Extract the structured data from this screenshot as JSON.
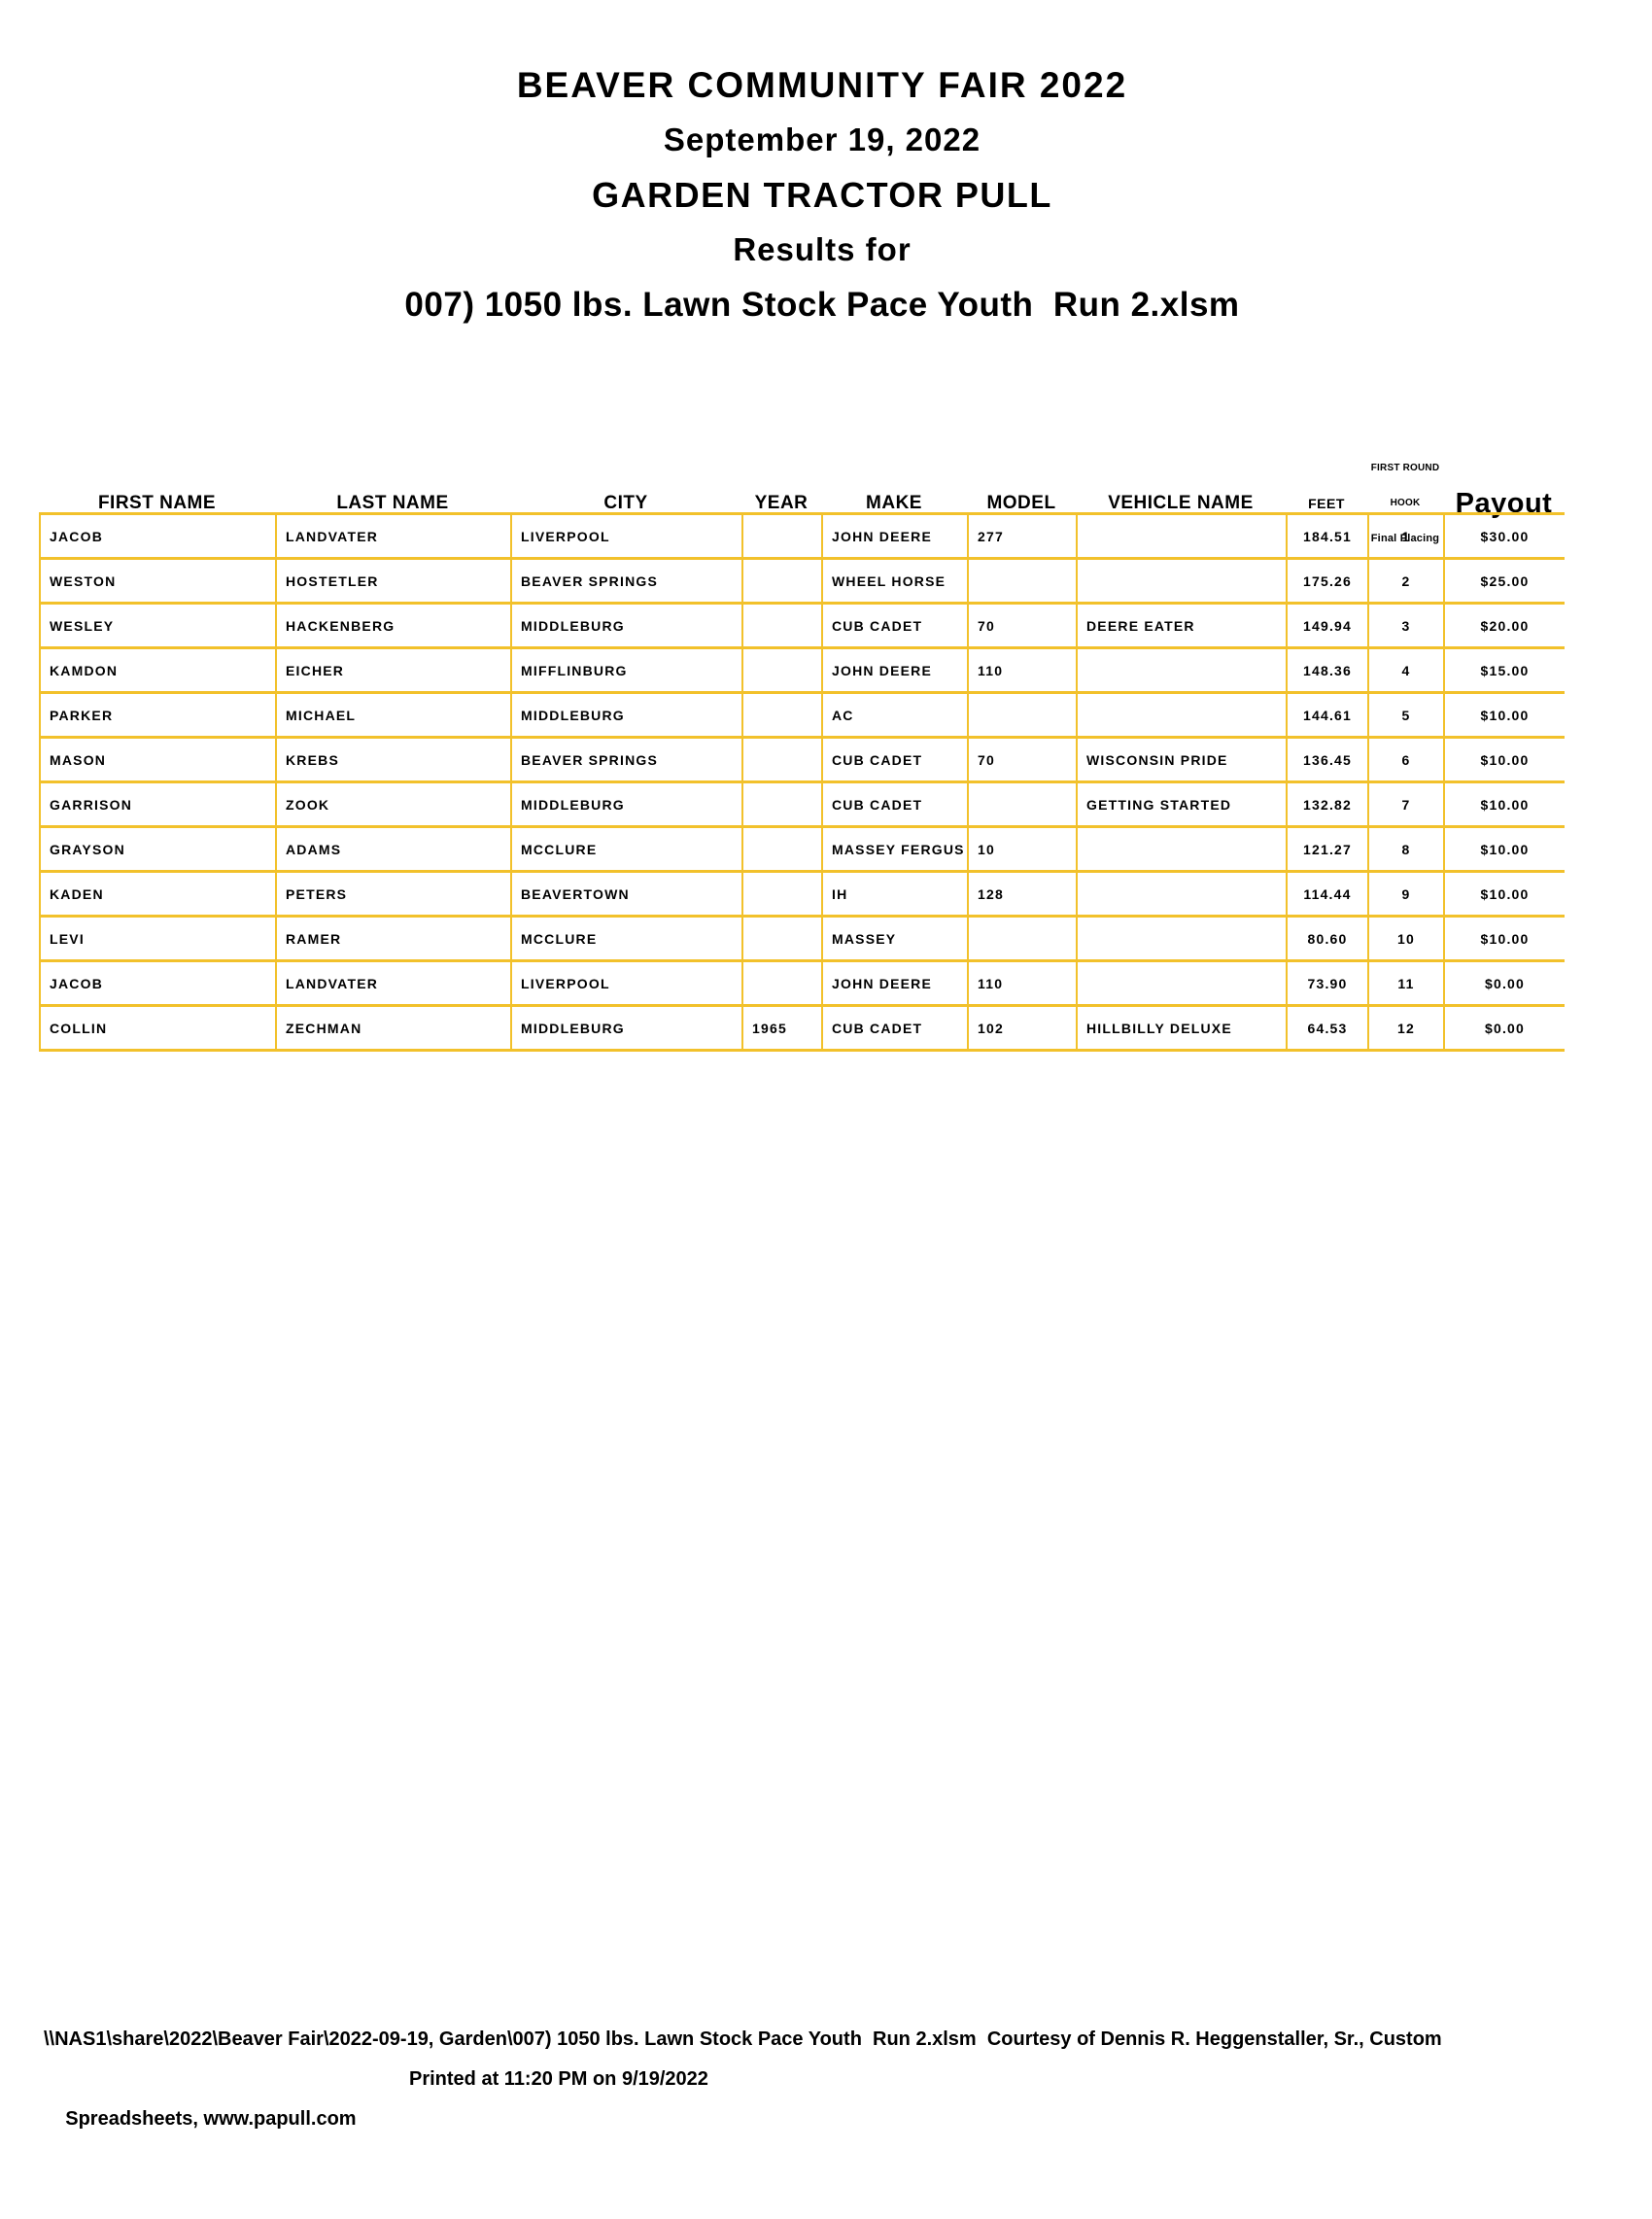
{
  "colors": {
    "table_border": "#F2C12B",
    "text": "#000000",
    "background": "#FFFFFF"
  },
  "page": {
    "titles": [
      "BEAVER COMMUNITY FAIR 2022",
      "September 19, 2022",
      "GARDEN TRACTOR PULL",
      "Results for",
      "007) 1050 lbs. Lawn Stock Pace Youth  Run 2.xlsm"
    ]
  },
  "table": {
    "columns": [
      {
        "key": "first_name",
        "label": "FIRST NAME"
      },
      {
        "key": "last_name",
        "label": "LAST NAME"
      },
      {
        "key": "city",
        "label": "CITY"
      },
      {
        "key": "year",
        "label": "YEAR"
      },
      {
        "key": "make",
        "label": "MAKE"
      },
      {
        "key": "model",
        "label": "MODEL"
      },
      {
        "key": "vehicle_name",
        "label": "VEHICLE NAME"
      },
      {
        "key": "feet",
        "label": "FEET"
      },
      {
        "key": "hook",
        "label_lines": [
          "FIRST ROUND",
          "HOOK",
          "Final Placing"
        ]
      },
      {
        "key": "payout",
        "label": "Payout"
      }
    ],
    "rows": [
      [
        "JACOB",
        "LANDVATER",
        "LIVERPOOL",
        "",
        "JOHN DEERE",
        "277",
        "",
        "184.51",
        "1",
        "$30.00"
      ],
      [
        "WESTON",
        "HOSTETLER",
        "BEAVER SPRINGS",
        "",
        "WHEEL HORSE",
        "",
        "",
        "175.26",
        "2",
        "$25.00"
      ],
      [
        "WESLEY",
        "HACKENBERG",
        "MIDDLEBURG",
        "",
        "CUB CADET",
        "70",
        "DEERE EATER",
        "149.94",
        "3",
        "$20.00"
      ],
      [
        "KAMDON",
        "EICHER",
        "MIFFLINBURG",
        "",
        "JOHN DEERE",
        "110",
        "",
        "148.36",
        "4",
        "$15.00"
      ],
      [
        "PARKER",
        "MICHAEL",
        "MIDDLEBURG",
        "",
        "AC",
        "",
        "",
        "144.61",
        "5",
        "$10.00"
      ],
      [
        "MASON",
        "KREBS",
        "BEAVER SPRINGS",
        "",
        "CUB CADET",
        "70",
        "WISCONSIN PRIDE",
        "136.45",
        "6",
        "$10.00"
      ],
      [
        "GARRISON",
        "ZOOK",
        "MIDDLEBURG",
        "",
        "CUB CADET",
        "",
        "GETTING STARTED",
        "132.82",
        "7",
        "$10.00"
      ],
      [
        "GRAYSON",
        "ADAMS",
        "MCCLURE",
        "",
        "MASSEY FERGUS",
        "10",
        "",
        "121.27",
        "8",
        "$10.00"
      ],
      [
        "KADEN",
        "PETERS",
        "BEAVERTOWN",
        "",
        "IH",
        "128",
        "",
        "114.44",
        "9",
        "$10.00"
      ],
      [
        "LEVI",
        "RAMER",
        "MCCLURE",
        "",
        "MASSEY",
        "",
        "",
        "80.60",
        "10",
        "$10.00"
      ],
      [
        "JACOB",
        "LANDVATER",
        "LIVERPOOL",
        "",
        "JOHN DEERE",
        "110",
        "",
        "73.90",
        "11",
        "$0.00"
      ],
      [
        "COLLIN",
        "ZECHMAN",
        "MIDDLEBURG",
        "1965",
        "CUB CADET",
        "102",
        "HILLBILLY DELUXE",
        "64.53",
        "12",
        "$0.00"
      ]
    ]
  },
  "footer": {
    "line1": "\\\\NAS1\\share\\2022\\Beaver Fair\\2022-09-19, Garden\\007) 1050 lbs. Lawn Stock Pace Youth  Run 2.xlsm  Courtesy of Dennis R. Heggenstaller, Sr., Custom",
    "line2_left": "Spreadsheets, www.papull.com",
    "line2_right": "Printed at 11:20 PM on 9/19/2022"
  }
}
